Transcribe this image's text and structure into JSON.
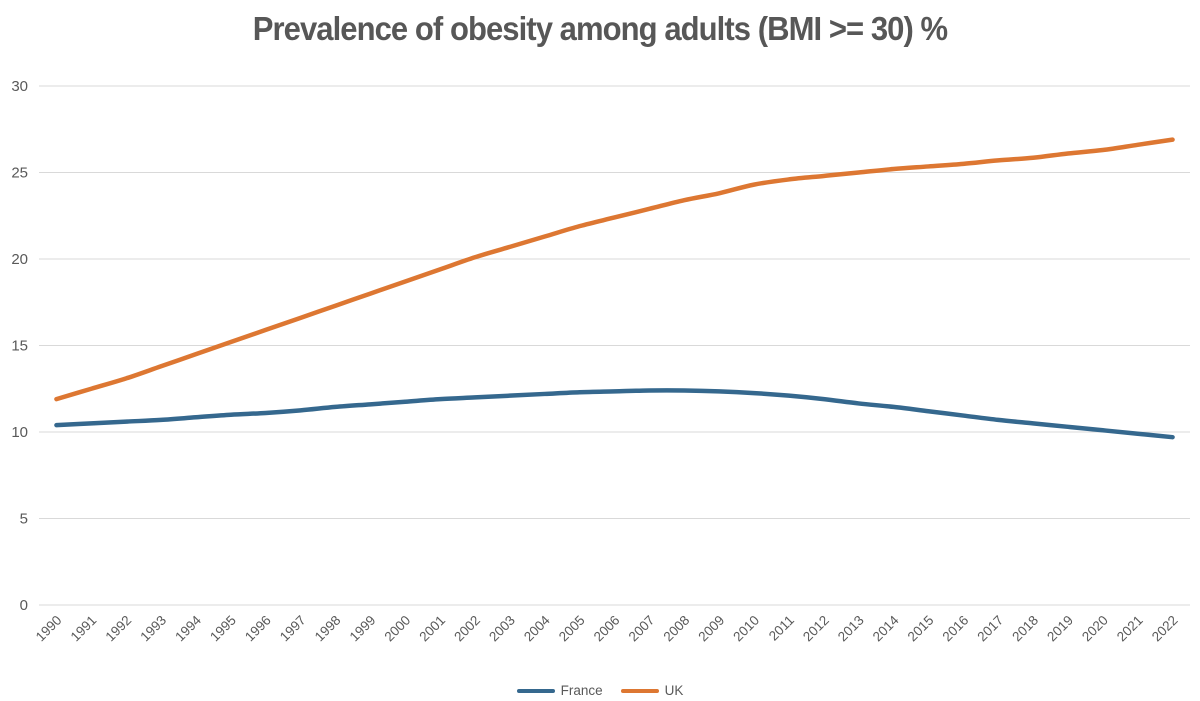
{
  "chart_data": {
    "type": "line",
    "title": "Prevalence of obesity among adults (BMI >= 30) %",
    "xlabel": "",
    "ylabel": "",
    "x": [
      1990,
      1991,
      1992,
      1993,
      1994,
      1995,
      1996,
      1997,
      1998,
      1999,
      2000,
      2001,
      2002,
      2003,
      2004,
      2005,
      2006,
      2007,
      2008,
      2009,
      2010,
      2011,
      2012,
      2013,
      2014,
      2015,
      2016,
      2017,
      2018,
      2019,
      2020,
      2021,
      2022
    ],
    "series": [
      {
        "name": "France",
        "color": "#35688E",
        "values": [
          10.4,
          10.5,
          10.6,
          10.7,
          10.85,
          11.0,
          11.1,
          11.25,
          11.45,
          11.6,
          11.75,
          11.9,
          12.0,
          12.1,
          12.2,
          12.3,
          12.35,
          12.4,
          12.4,
          12.35,
          12.25,
          12.1,
          11.9,
          11.65,
          11.45,
          11.2,
          10.95,
          10.7,
          10.5,
          10.3,
          10.1,
          9.9,
          9.7
        ]
      },
      {
        "name": "UK",
        "color": "#DD7732",
        "values": [
          11.9,
          12.5,
          13.1,
          13.8,
          14.5,
          15.2,
          15.9,
          16.6,
          17.3,
          18.0,
          18.7,
          19.4,
          20.1,
          20.7,
          21.3,
          21.9,
          22.4,
          22.9,
          23.4,
          23.8,
          24.3,
          24.6,
          24.8,
          25.0,
          25.2,
          25.35,
          25.5,
          25.7,
          25.85,
          26.1,
          26.3,
          26.6,
          26.9
        ]
      }
    ],
    "ylim": [
      0,
      30
    ],
    "yticks": [
      0,
      5,
      10,
      15,
      20,
      25,
      30
    ],
    "grid": true,
    "legend_position": "bottom",
    "colors": {
      "text": "#595959",
      "gridline": "#D9D9D9",
      "title": "#575757",
      "background": "#FFFFFF"
    }
  }
}
